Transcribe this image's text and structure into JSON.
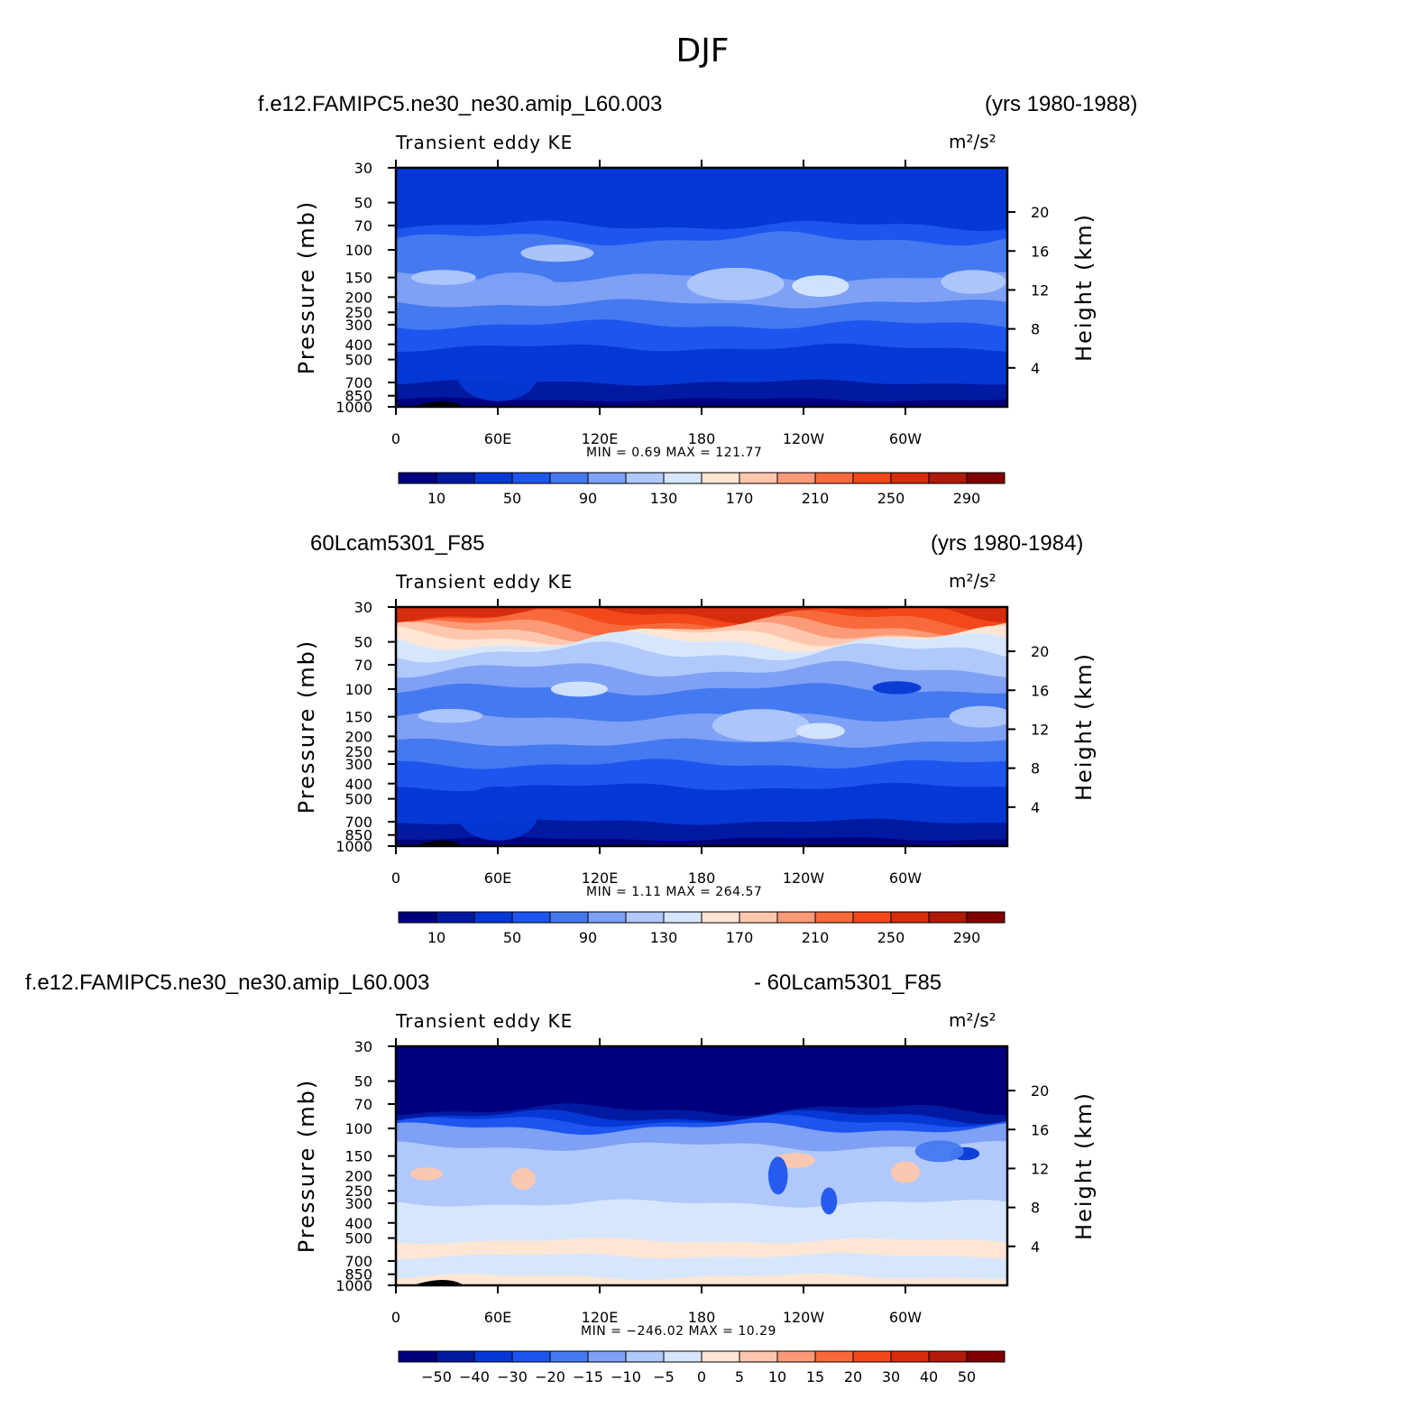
{
  "page": {
    "main_title": "DJF"
  },
  "panels": [
    {
      "case_left": "f.e12.FAMIPC5.ne30_ne30.amip_L60.003",
      "case_right": "(yrs 1980-1988)",
      "title": "Transient eddy KE",
      "units": "m²/s²",
      "stats": "MIN =    0.69   MAX =  121.77",
      "colorbar_labels": [
        "10",
        "50",
        "90",
        "130",
        "170",
        "210",
        "250",
        "290"
      ]
    },
    {
      "case_left": "60Lcam5301_F85",
      "case_right": "(yrs 1980-1984)",
      "title": "Transient eddy KE",
      "units": "m²/s²",
      "stats": "MIN =    1.11   MAX =  264.57",
      "colorbar_labels": [
        "10",
        "50",
        "90",
        "130",
        "170",
        "210",
        "250",
        "290"
      ]
    },
    {
      "case_left": "f.e12.FAMIPC5.ne30_ne30.amip_L60.003",
      "case_right": "- 60Lcam5301_F85",
      "title": "Transient eddy KE",
      "units": "m²/s²",
      "stats": "MIN = −246.02   MAX =   10.29",
      "colorbar_labels": [
        "−50",
        "−40",
        "−30",
        "−20",
        "−15",
        "−10",
        "−5",
        "0",
        "5",
        "10",
        "15",
        "20",
        "30",
        "40",
        "50"
      ]
    }
  ],
  "axes": {
    "x_ticks": [
      "0",
      "60E",
      "120E",
      "180",
      "120W",
      "60W"
    ],
    "y_left_ticks": [
      "30",
      "50",
      "70",
      "100",
      "150",
      "200",
      "250",
      "300",
      "400",
      "500",
      "700",
      "850",
      "1000"
    ],
    "y_right_ticks": [
      "20",
      "16",
      "12",
      "8",
      "4"
    ],
    "y_left_label": "Pressure (mb)",
    "y_right_label": "Height (km)"
  },
  "colors": {
    "palette": [
      "#00007f",
      "#0219a1",
      "#0538d4",
      "#1e55ee",
      "#4479f0",
      "#7ea0f5",
      "#b0c8fa",
      "#d6e6fd",
      "#ffe5d4",
      "#fec7ad",
      "#fb9a77",
      "#f86a3c",
      "#f2481a",
      "#d62d0e",
      "#b01a08",
      "#800000"
    ]
  },
  "chart_data": [
    {
      "type": "heatmap",
      "title": "Transient eddy KE",
      "units": "m²/s²",
      "x_range_deg": [
        0,
        360
      ],
      "y_range_mb": [
        30,
        1000
      ],
      "y_scale": "log",
      "contour_levels": [
        10,
        30,
        50,
        70,
        90,
        110,
        130,
        150,
        170,
        190,
        210,
        230,
        250,
        270,
        290
      ],
      "min": 0.69,
      "max": 121.77
    },
    {
      "type": "heatmap",
      "title": "Transient eddy KE",
      "units": "m²/s²",
      "x_range_deg": [
        0,
        360
      ],
      "y_range_mb": [
        30,
        1000
      ],
      "y_scale": "log",
      "contour_levels": [
        10,
        30,
        50,
        70,
        90,
        110,
        130,
        150,
        170,
        190,
        210,
        230,
        250,
        270,
        290
      ],
      "min": 1.11,
      "max": 264.57
    },
    {
      "type": "heatmap",
      "title": "Transient eddy KE",
      "units": "m²/s²",
      "x_range_deg": [
        0,
        360
      ],
      "y_range_mb": [
        30,
        1000
      ],
      "y_scale": "log",
      "contour_levels": [
        -50,
        -40,
        -30,
        -20,
        -15,
        -10,
        -5,
        0,
        5,
        10,
        15,
        20,
        30,
        40,
        50
      ],
      "min": -246.02,
      "max": 10.29
    }
  ]
}
